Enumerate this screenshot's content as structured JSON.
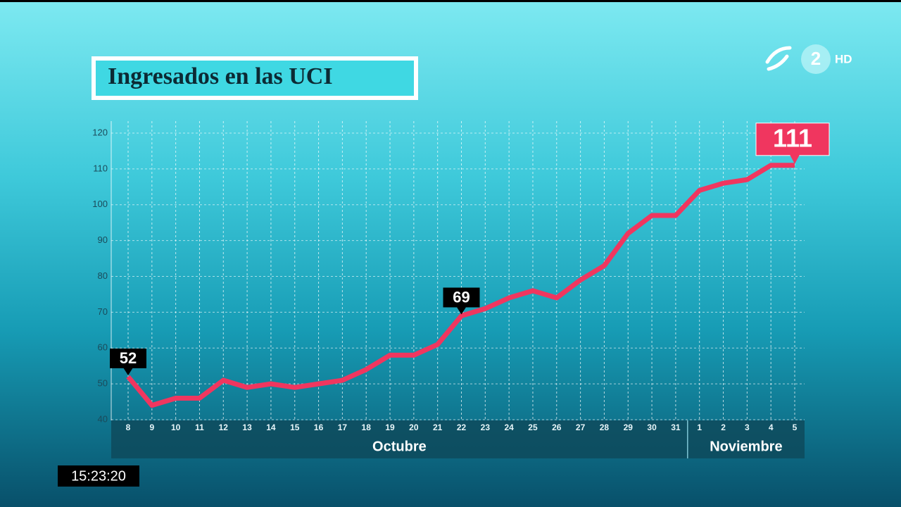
{
  "chart_data": {
    "type": "line",
    "title": "Ingresados en las UCI",
    "categories": [
      "8",
      "9",
      "10",
      "11",
      "12",
      "13",
      "14",
      "15",
      "16",
      "17",
      "18",
      "19",
      "20",
      "21",
      "22",
      "23",
      "24",
      "25",
      "26",
      "27",
      "28",
      "29",
      "30",
      "31",
      "1",
      "2",
      "3",
      "4",
      "5"
    ],
    "x_groups": [
      "Octubre",
      "Noviembre"
    ],
    "values": [
      52,
      44,
      46,
      46,
      51,
      49,
      50,
      49,
      50,
      51,
      54,
      58,
      58,
      61,
      69,
      71,
      74,
      76,
      74,
      79,
      83,
      92,
      97,
      97,
      104,
      106,
      107,
      111,
      111
    ],
    "color": "#f0365f",
    "ylim": [
      40,
      120
    ],
    "yticks": [
      40,
      50,
      60,
      70,
      80,
      90,
      100,
      110,
      120
    ],
    "grid": true
  },
  "overlay": {
    "clock": "15:23:20",
    "channel": "2",
    "channel_suffix": "HD"
  }
}
